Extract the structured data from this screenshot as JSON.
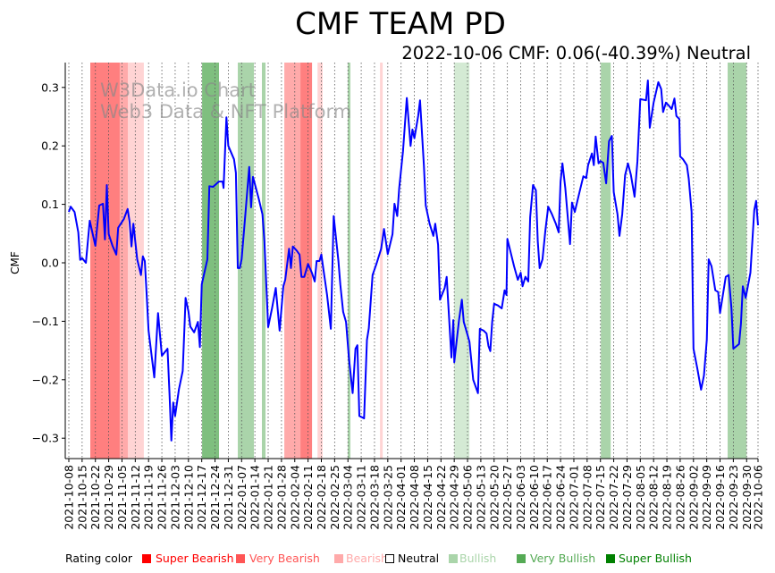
{
  "chart_data": {
    "type": "line",
    "title": "CMF TEAM PD",
    "subtitle": "2022-10-06 CMF: 0.06(-40.39%) Neutral",
    "ylabel": "CMF",
    "xlabel": "",
    "x_origin": "2021-10-08",
    "x_unit": "days since 2021-10-08",
    "xlim": [
      0,
      363
    ],
    "ylim": [
      -0.335,
      0.343
    ],
    "yticks": [
      -0.3,
      -0.2,
      -0.1,
      0.0,
      0.1,
      0.2,
      0.3
    ],
    "ytick_labels": [
      "−0.3",
      "−0.2",
      "−0.1",
      "0.0",
      "0.1",
      "0.2",
      "0.3"
    ],
    "xtick_days": [
      0,
      7,
      14,
      21,
      28,
      35,
      42,
      49,
      56,
      63,
      70,
      77,
      84,
      91,
      98,
      105,
      112,
      119,
      126,
      133,
      140,
      147,
      154,
      161,
      168,
      175,
      182,
      189,
      196,
      203,
      210,
      217,
      224,
      231,
      238,
      245,
      252,
      259,
      266,
      273,
      280,
      287,
      294,
      301,
      308,
      315,
      322,
      329,
      336,
      343,
      350,
      357,
      363
    ],
    "xtick_labels": [
      "2021-10-08",
      "2021-10-15",
      "2021-10-22",
      "2021-10-29",
      "2021-11-05",
      "2021-11-12",
      "2021-11-19",
      "2021-11-26",
      "2021-12-03",
      "2021-12-10",
      "2021-12-17",
      "2021-12-24",
      "2021-12-31",
      "2022-01-07",
      "2022-01-14",
      "2022-01-21",
      "2022-01-28",
      "2022-02-04",
      "2022-02-11",
      "2022-02-18",
      "2022-02-25",
      "2022-03-04",
      "2022-03-11",
      "2022-03-18",
      "2022-03-25",
      "2022-04-01",
      "2022-04-08",
      "2022-04-15",
      "2022-04-22",
      "2022-04-29",
      "2022-05-06",
      "2022-05-13",
      "2022-05-20",
      "2022-05-27",
      "2022-06-03",
      "2022-06-10",
      "2022-06-17",
      "2022-06-24",
      "2022-07-01",
      "2022-07-08",
      "2022-07-15",
      "2022-07-22",
      "2022-07-29",
      "2022-08-05",
      "2022-08-12",
      "2022-08-19",
      "2022-08-26",
      "2022-09-02",
      "2022-09-09",
      "2022-09-16",
      "2022-09-23",
      "2022-09-30",
      "2022-10-06"
    ],
    "grid": "vertical dotted",
    "series": [
      {
        "name": "CMF",
        "color": "#0000ff",
        "points": [
          [
            0,
            0.087
          ],
          [
            1,
            0.096
          ],
          [
            3,
            0.087
          ],
          [
            5,
            0.052
          ],
          [
            6,
            0.005
          ],
          [
            7,
            0.008
          ],
          [
            9,
            0.0
          ],
          [
            11,
            0.072
          ],
          [
            14,
            0.029
          ],
          [
            16,
            0.098
          ],
          [
            18,
            0.101
          ],
          [
            19,
            0.04
          ],
          [
            20,
            0.133
          ],
          [
            21,
            0.049
          ],
          [
            23,
            0.029
          ],
          [
            25,
            0.014
          ],
          [
            26,
            0.06
          ],
          [
            29,
            0.075
          ],
          [
            31,
            0.092
          ],
          [
            32,
            0.07
          ],
          [
            33,
            0.028
          ],
          [
            34,
            0.067
          ],
          [
            35,
            0.037
          ],
          [
            36,
            0.006
          ],
          [
            38,
            -0.021
          ],
          [
            39,
            0.011
          ],
          [
            40,
            0.003
          ],
          [
            41,
            -0.055
          ],
          [
            42,
            -0.116
          ],
          [
            45,
            -0.196
          ],
          [
            47,
            -0.086
          ],
          [
            49,
            -0.159
          ],
          [
            52,
            -0.147
          ],
          [
            53,
            -0.223
          ],
          [
            54,
            -0.304
          ],
          [
            55,
            -0.239
          ],
          [
            56,
            -0.262
          ],
          [
            58,
            -0.216
          ],
          [
            60,
            -0.185
          ],
          [
            61,
            -0.101
          ],
          [
            61.5,
            -0.06
          ],
          [
            63,
            -0.083
          ],
          [
            64,
            -0.109
          ],
          [
            66,
            -0.119
          ],
          [
            68,
            -0.101
          ],
          [
            69,
            -0.144
          ],
          [
            70,
            -0.037
          ],
          [
            73,
            0.006
          ],
          [
            74,
            0.131
          ],
          [
            76,
            0.13
          ],
          [
            79,
            0.139
          ],
          [
            81,
            0.139
          ],
          [
            81.5,
            0.128
          ],
          [
            83,
            0.249
          ],
          [
            84,
            0.2
          ],
          [
            87,
            0.177
          ],
          [
            88,
            0.154
          ],
          [
            89,
            -0.009
          ],
          [
            90,
            -0.009
          ],
          [
            91,
            0.006
          ],
          [
            93,
            0.083
          ],
          [
            95,
            0.164
          ],
          [
            96,
            0.095
          ],
          [
            97,
            0.147
          ],
          [
            100,
            0.11
          ],
          [
            102,
            0.083
          ],
          [
            103,
            0.037
          ],
          [
            105,
            -0.11
          ],
          [
            107,
            -0.078
          ],
          [
            109,
            -0.043
          ],
          [
            111,
            -0.116
          ],
          [
            113,
            -0.04
          ],
          [
            114,
            -0.029
          ],
          [
            116,
            0.024
          ],
          [
            117,
            -0.009
          ],
          [
            118,
            0.028
          ],
          [
            120,
            0.021
          ],
          [
            121.5,
            0.014
          ],
          [
            122.5,
            -0.024
          ],
          [
            124,
            -0.024
          ],
          [
            126,
            -0.002
          ],
          [
            128,
            -0.017
          ],
          [
            129.5,
            -0.032
          ],
          [
            130.5,
            0.003
          ],
          [
            132,
            0.003
          ],
          [
            133,
            0.014
          ],
          [
            134,
            -0.009
          ],
          [
            136,
            -0.055
          ],
          [
            138,
            -0.113
          ],
          [
            139.5,
            0.08
          ],
          [
            142,
            0.003
          ],
          [
            143,
            -0.037
          ],
          [
            144.5,
            -0.084
          ],
          [
            146,
            -0.101
          ],
          [
            147.5,
            -0.162
          ],
          [
            149.5,
            -0.223
          ],
          [
            151,
            -0.147
          ],
          [
            152,
            -0.141
          ],
          [
            153,
            -0.262
          ],
          [
            155.5,
            -0.266
          ],
          [
            157,
            -0.132
          ],
          [
            158,
            -0.112
          ],
          [
            160,
            -0.021
          ],
          [
            162,
            -0.002
          ],
          [
            164.5,
            0.024
          ],
          [
            166,
            0.058
          ],
          [
            168,
            0.015
          ],
          [
            170.5,
            0.049
          ],
          [
            171.5,
            0.101
          ],
          [
            173,
            0.08
          ],
          [
            174,
            0.128
          ],
          [
            176,
            0.19
          ],
          [
            178,
            0.282
          ],
          [
            180,
            0.2
          ],
          [
            181,
            0.228
          ],
          [
            182,
            0.213
          ],
          [
            184,
            0.251
          ],
          [
            185,
            0.278
          ],
          [
            187,
            0.167
          ],
          [
            188,
            0.098
          ],
          [
            190,
            0.067
          ],
          [
            192,
            0.046
          ],
          [
            193,
            0.067
          ],
          [
            194.5,
            0.031
          ],
          [
            195.5,
            -0.063
          ],
          [
            198,
            -0.043
          ],
          [
            199,
            -0.024
          ],
          [
            201.5,
            -0.162
          ],
          [
            202.5,
            -0.098
          ],
          [
            203,
            -0.17
          ],
          [
            205.5,
            -0.098
          ],
          [
            207,
            -0.063
          ],
          [
            208,
            -0.101
          ],
          [
            209,
            -0.112
          ],
          [
            211,
            -0.135
          ],
          [
            213,
            -0.2
          ],
          [
            215.5,
            -0.223
          ],
          [
            216.5,
            -0.113
          ],
          [
            218.5,
            -0.116
          ],
          [
            220,
            -0.121
          ],
          [
            221,
            -0.142
          ],
          [
            222,
            -0.151
          ],
          [
            223,
            -0.101
          ],
          [
            224,
            -0.07
          ],
          [
            226,
            -0.073
          ],
          [
            228,
            -0.078
          ],
          [
            229.5,
            -0.047
          ],
          [
            230.5,
            -0.055
          ],
          [
            231,
            0.041
          ],
          [
            232.5,
            0.021
          ],
          [
            234.5,
            -0.006
          ],
          [
            236.5,
            -0.029
          ],
          [
            238,
            -0.017
          ],
          [
            239,
            -0.04
          ],
          [
            240.5,
            -0.024
          ],
          [
            242,
            -0.032
          ],
          [
            243,
            0.078
          ],
          [
            244.5,
            0.133
          ],
          [
            246,
            0.124
          ],
          [
            247,
            0.037
          ],
          [
            248,
            -0.009
          ],
          [
            249.5,
            0.006
          ],
          [
            251,
            0.055
          ],
          [
            252.5,
            0.096
          ],
          [
            254.5,
            0.083
          ],
          [
            256.5,
            0.067
          ],
          [
            258,
            0.052
          ],
          [
            259,
            0.139
          ],
          [
            260,
            0.17
          ],
          [
            261.5,
            0.128
          ],
          [
            264,
            0.032
          ],
          [
            265,
            0.103
          ],
          [
            266.5,
            0.087
          ],
          [
            269.5,
            0.128
          ],
          [
            271,
            0.148
          ],
          [
            272.5,
            0.145
          ],
          [
            273.5,
            0.167
          ],
          [
            275.5,
            0.187
          ],
          [
            276.5,
            0.167
          ],
          [
            277.5,
            0.216
          ],
          [
            279,
            0.17
          ],
          [
            280,
            0.174
          ],
          [
            281.5,
            0.171
          ],
          [
            283,
            0.136
          ],
          [
            284.5,
            0.208
          ],
          [
            286,
            0.217
          ],
          [
            287,
            0.121
          ],
          [
            289,
            0.083
          ],
          [
            290,
            0.046
          ],
          [
            291.5,
            0.083
          ],
          [
            293,
            0.15
          ],
          [
            294.5,
            0.17
          ],
          [
            296,
            0.151
          ],
          [
            298,
            0.113
          ],
          [
            299.5,
            0.174
          ],
          [
            301,
            0.28
          ],
          [
            304,
            0.278
          ],
          [
            305,
            0.312
          ],
          [
            306,
            0.231
          ],
          [
            308,
            0.274
          ],
          [
            310.5,
            0.309
          ],
          [
            312,
            0.297
          ],
          [
            313,
            0.258
          ],
          [
            314.5,
            0.274
          ],
          [
            316,
            0.269
          ],
          [
            317.5,
            0.263
          ],
          [
            319,
            0.281
          ],
          [
            320,
            0.251
          ],
          [
            321.5,
            0.246
          ],
          [
            322,
            0.182
          ],
          [
            323.5,
            0.177
          ],
          [
            325.5,
            0.167
          ],
          [
            326.5,
            0.144
          ],
          [
            328,
            0.087
          ],
          [
            329,
            -0.147
          ],
          [
            331,
            -0.18
          ],
          [
            333,
            -0.217
          ],
          [
            334.5,
            -0.193
          ],
          [
            336,
            -0.132
          ],
          [
            337,
            0.006
          ],
          [
            338.5,
            -0.006
          ],
          [
            340.5,
            -0.047
          ],
          [
            342,
            -0.05
          ],
          [
            343,
            -0.086
          ],
          [
            344.5,
            -0.055
          ],
          [
            346,
            -0.024
          ],
          [
            347.5,
            -0.021
          ],
          [
            349,
            -0.078
          ],
          [
            350,
            -0.147
          ],
          [
            353,
            -0.139
          ],
          [
            354,
            -0.104
          ],
          [
            355,
            -0.04
          ],
          [
            356.5,
            -0.06
          ],
          [
            359,
            -0.017
          ],
          [
            361,
            0.09
          ],
          [
            362,
            0.106
          ],
          [
            363,
            0.064
          ]
        ]
      }
    ],
    "rating_bands": [
      {
        "start": 11.3,
        "end": 26.8,
        "rating": "super_bearish"
      },
      {
        "start": 26.8,
        "end": 31.1,
        "rating": "very_bearish"
      },
      {
        "start": 31.1,
        "end": 39.5,
        "rating": "bearish"
      },
      {
        "start": 70.2,
        "end": 79.1,
        "rating": "super_bullish"
      },
      {
        "start": 89.0,
        "end": 97.5,
        "rating": "very_bullish"
      },
      {
        "start": 101.7,
        "end": 103.6,
        "rating": "very_bullish"
      },
      {
        "start": 113.5,
        "end": 122.0,
        "rating": "very_bearish"
      },
      {
        "start": 122.0,
        "end": 128.1,
        "rating": "super_bearish"
      },
      {
        "start": 131.0,
        "end": 133.7,
        "rating": "bearish"
      },
      {
        "start": 146.9,
        "end": 148.3,
        "rating": "very_bullish"
      },
      {
        "start": 163.9,
        "end": 165.3,
        "rating": "bearish"
      },
      {
        "start": 203.0,
        "end": 211.0,
        "rating": "bullish"
      },
      {
        "start": 280.2,
        "end": 285.4,
        "rating": "very_bullish"
      },
      {
        "start": 347.0,
        "end": 357.0,
        "rating": "very_bullish"
      }
    ],
    "watermark": [
      "W3Data.io Chart",
      "Web3 Data & NFT Platform"
    ],
    "legend": {
      "title": "Rating color",
      "placement": "bottom",
      "items": [
        {
          "key": "super_bearish",
          "label": "Super Bearish",
          "color": "#ff0000"
        },
        {
          "key": "very_bearish",
          "label": "Very Bearish",
          "color": "#ff5555"
        },
        {
          "key": "bearish",
          "label": "Bearish",
          "color": "#ffaaaa"
        },
        {
          "key": "neutral",
          "label": "Neutral",
          "color": "#000000"
        },
        {
          "key": "bullish",
          "label": "Bullish",
          "color": "#aad5aa"
        },
        {
          "key": "very_bullish",
          "label": "Very Bullish",
          "color": "#55aa55"
        },
        {
          "key": "super_bullish",
          "label": "Super Bullish",
          "color": "#008000"
        }
      ]
    }
  }
}
